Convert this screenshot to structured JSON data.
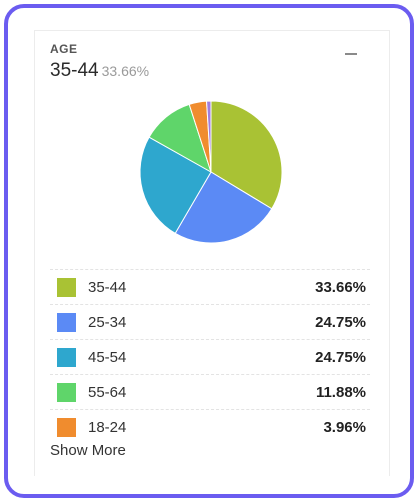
{
  "widget": {
    "label": "AGE",
    "headline_value": "35-44",
    "headline_pct": "33.66%",
    "show_more": "Show More"
  },
  "chart_data": {
    "type": "pie",
    "slices": [
      {
        "label": "35-44",
        "value": 33.66,
        "display": "33.66%",
        "color": "#a9c234"
      },
      {
        "label": "25-34",
        "value": 24.75,
        "display": "24.75%",
        "color": "#5b8af5"
      },
      {
        "label": "45-54",
        "value": 24.75,
        "display": "24.75%",
        "color": "#2ea7ce"
      },
      {
        "label": "55-64",
        "value": 11.88,
        "display": "11.88%",
        "color": "#5fd56a"
      },
      {
        "label": "18-24",
        "value": 3.96,
        "display": "3.96%",
        "color": "#f08c2e"
      },
      {
        "label": "",
        "value": 1.0,
        "display": "",
        "color": "#a07ee0"
      }
    ]
  }
}
